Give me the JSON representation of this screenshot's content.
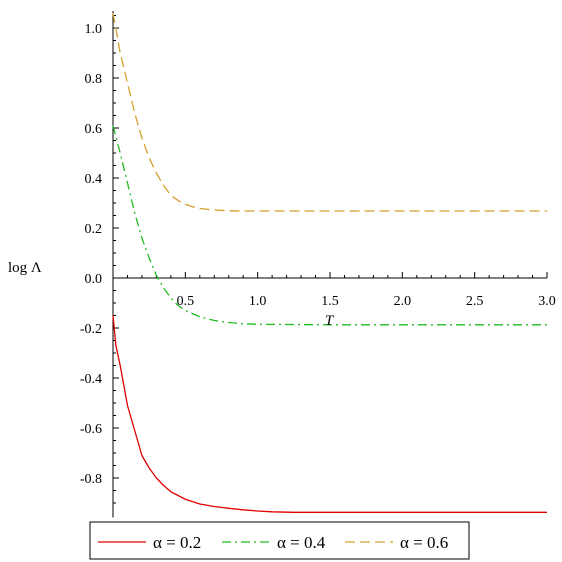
{
  "chart_data": {
    "type": "line",
    "xlabel": "T",
    "ylabel": "log Λ",
    "xlim": [
      0,
      3.0
    ],
    "ylim": [
      -0.95,
      1.06
    ],
    "x_ticks": [
      0.5,
      1.0,
      1.5,
      2.0,
      2.5,
      3.0
    ],
    "x_tick_labels": [
      "0.5",
      "1.0",
      "1.5",
      "2.0",
      "2.5",
      "3.0"
    ],
    "y_ticks": [
      -0.8,
      -0.6,
      -0.4,
      -0.2,
      0.0,
      0.2,
      0.4,
      0.6,
      0.8,
      1.0
    ],
    "y_tick_labels": [
      "-0.8",
      "-0.6",
      "-0.4",
      "-0.2",
      "0.0",
      "0.2",
      "0.4",
      "0.6",
      "0.8",
      "1.0"
    ],
    "grid": false,
    "legend_position": "bottom",
    "series": [
      {
        "name": "α = 0.2",
        "color": "#e00000",
        "dash": "solid",
        "x": [
          0.0,
          0.02,
          0.05,
          0.1,
          0.15,
          0.2,
          0.25,
          0.3,
          0.35,
          0.4,
          0.45,
          0.5,
          0.6,
          0.7,
          0.8,
          0.9,
          1.0,
          1.1,
          1.25,
          1.5,
          2.0,
          2.5,
          3.0
        ],
        "y": [
          -0.15,
          -0.27,
          -0.35,
          -0.51,
          -0.61,
          -0.71,
          -0.76,
          -0.8,
          -0.83,
          -0.855,
          -0.87,
          -0.885,
          -0.904,
          -0.914,
          -0.921,
          -0.927,
          -0.932,
          -0.935,
          -0.937,
          -0.937,
          -0.937,
          -0.937,
          -0.937
        ]
      },
      {
        "name": "α = 0.4",
        "color": "#22bb22",
        "dash": "dashdot",
        "x": [
          0.0,
          0.05,
          0.1,
          0.15,
          0.2,
          0.25,
          0.3,
          0.35,
          0.4,
          0.45,
          0.5,
          0.6,
          0.7,
          0.8,
          0.9,
          1.0,
          1.2,
          1.5,
          2.0,
          2.5,
          3.0
        ],
        "y": [
          0.61,
          0.5,
          0.38,
          0.26,
          0.16,
          0.08,
          0.01,
          -0.04,
          -0.08,
          -0.11,
          -0.13,
          -0.155,
          -0.17,
          -0.178,
          -0.183,
          -0.185,
          -0.186,
          -0.187,
          -0.187,
          -0.187,
          -0.187
        ]
      },
      {
        "name": "α = 0.6",
        "color": "#d4a030",
        "dash": "dashed",
        "x": [
          0.0,
          0.05,
          0.1,
          0.15,
          0.2,
          0.25,
          0.3,
          0.35,
          0.4,
          0.45,
          0.5,
          0.55,
          0.6,
          0.7,
          0.8,
          0.9,
          1.0,
          1.5,
          2.0,
          2.5,
          3.0
        ],
        "y": [
          1.06,
          0.9,
          0.78,
          0.66,
          0.56,
          0.48,
          0.42,
          0.37,
          0.33,
          0.31,
          0.295,
          0.285,
          0.278,
          0.272,
          0.269,
          0.268,
          0.268,
          0.268,
          0.268,
          0.268,
          0.268
        ]
      }
    ]
  }
}
